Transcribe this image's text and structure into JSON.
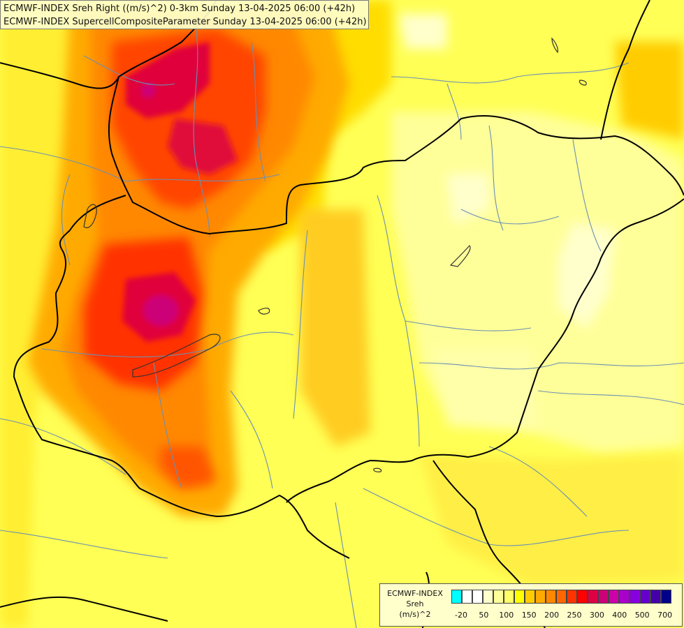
{
  "title": {
    "line1": "ECMWF-INDEX Sreh Right ((m/s)^2) 0-3km Sunday 13-04-2025 06:00 (+42h)",
    "line2": "ECMWF-INDEX SupercellCompositeParameter Sunday 13-04-2025 06:00 (+42h)"
  },
  "legend": {
    "model": "ECMWF-INDEX",
    "parameter": "Sreh",
    "unit": "(m/s)^2",
    "colors": [
      "#00ffff",
      "#ffffff",
      "#ffffff",
      "#ffffcc",
      "#ffff99",
      "#ffff66",
      "#ffff00",
      "#ffcc00",
      "#ffaa00",
      "#ff8800",
      "#ff6600",
      "#ff3300",
      "#ff0000",
      "#dd0044",
      "#cc0077",
      "#cc00aa",
      "#aa00cc",
      "#8800dd",
      "#6600cc",
      "#4400aa",
      "#000088"
    ],
    "tick_labels": [
      "-20",
      "50",
      "100",
      "150",
      "200",
      "250",
      "300",
      "400",
      "500",
      "700"
    ]
  }
}
